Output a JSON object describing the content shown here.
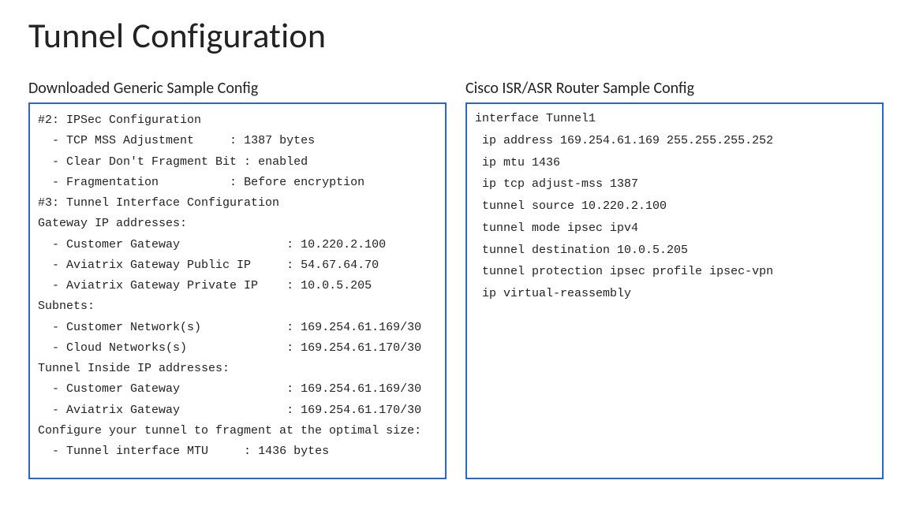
{
  "title": "Tunnel Configuration",
  "colors": {
    "border": "#2b66c4",
    "text": "#222222",
    "background": "#ffffff"
  },
  "typography": {
    "title_fontsize_pt": 34,
    "heading_fontsize_pt": 15,
    "mono_fontsize_pt": 11,
    "mono_family": "Courier New"
  },
  "left": {
    "heading": "Downloaded Generic Sample Config",
    "lines": [
      {
        "type": "plain",
        "text": "#2: IPSec Configuration"
      },
      {
        "type": "kv",
        "indent": "  - ",
        "key_width": 23,
        "key": "TCP MSS Adjustment",
        "val": "1387 bytes"
      },
      {
        "type": "kv",
        "indent": "  - ",
        "key_width": 24,
        "key": "Clear Don't Fragment Bit ",
        "val": "enabled",
        "no_sep_pad": true
      },
      {
        "type": "kv",
        "indent": "  - ",
        "key_width": 23,
        "key": "Fragmentation",
        "val": "Before encryption"
      },
      {
        "type": "plain",
        "text": "#3: Tunnel Interface Configuration"
      },
      {
        "type": "plain",
        "text": "Gateway IP addresses:"
      },
      {
        "type": "kv",
        "indent": "  - ",
        "key_width": 31,
        "key": "Customer Gateway",
        "val": "10.220.2.100"
      },
      {
        "type": "kv",
        "indent": "  - ",
        "key_width": 31,
        "key": "Aviatrix Gateway Public IP",
        "val": "54.67.64.70"
      },
      {
        "type": "kv",
        "indent": "  - ",
        "key_width": 31,
        "key": "Aviatrix Gateway Private IP",
        "val": "10.0.5.205"
      },
      {
        "type": "plain",
        "text": "Subnets:"
      },
      {
        "type": "kv",
        "indent": "  - ",
        "key_width": 31,
        "key": "Customer Network(s)",
        "val": "169.254.61.169/30"
      },
      {
        "type": "kv",
        "indent": "  - ",
        "key_width": 31,
        "key": "Cloud Networks(s)",
        "val": "169.254.61.170/30"
      },
      {
        "type": "plain",
        "text": "Tunnel Inside IP addresses:"
      },
      {
        "type": "kv",
        "indent": "  - ",
        "key_width": 31,
        "key": "Customer Gateway",
        "val": "169.254.61.169/30"
      },
      {
        "type": "kv",
        "indent": "  - ",
        "key_width": 31,
        "key": "Aviatrix Gateway",
        "val": "169.254.61.170/30"
      },
      {
        "type": "plain",
        "text": "Configure your tunnel to fragment at the optimal size:"
      },
      {
        "type": "kv",
        "indent": "  - ",
        "key_width": 25,
        "key": "Tunnel interface MTU",
        "val": "1436 bytes"
      }
    ]
  },
  "right": {
    "heading": "Cisco ISR/ASR Router Sample Config",
    "lines": [
      "interface Tunnel1",
      " ip address 169.254.61.169 255.255.255.252",
      " ip mtu 1436",
      " ip tcp adjust-mss 1387",
      " tunnel source 10.220.2.100",
      " tunnel mode ipsec ipv4",
      " tunnel destination 10.0.5.205",
      " tunnel protection ipsec profile ipsec-vpn",
      " ip virtual-reassembly"
    ]
  }
}
